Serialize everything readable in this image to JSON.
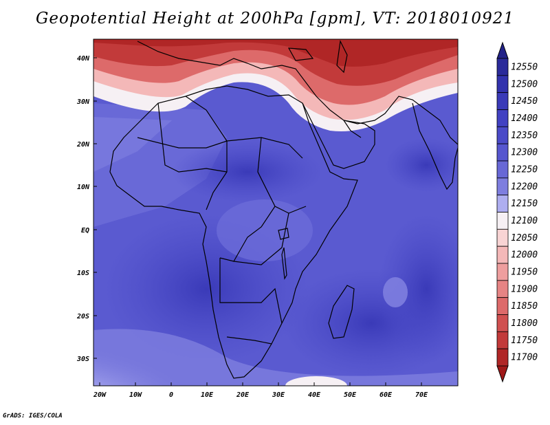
{
  "title": "Geopotential Height at 200hPa [gpm], VT: 2018010921",
  "credit": "GrADS: IGES/COLA",
  "map": {
    "variable": "Geopotential Height",
    "level": "200hPa",
    "units": "gpm",
    "valid_time": "2018010921",
    "region": "Africa and Middle East",
    "lat_labels": [
      "40N",
      "30N",
      "20N",
      "10N",
      "EQ",
      "10S",
      "20S",
      "30S"
    ],
    "lon_labels": [
      "20W",
      "10W",
      "0",
      "10E",
      "20E",
      "30E",
      "40E",
      "50E",
      "60E",
      "70E"
    ]
  },
  "colorbar": {
    "levels": [
      "12550",
      "12500",
      "12450",
      "12400",
      "12350",
      "12300",
      "12250",
      "12200",
      "12150",
      "12100",
      "12050",
      "12000",
      "11950",
      "11900",
      "11850",
      "11800",
      "11750",
      "11700"
    ],
    "colors": [
      "#2b2b9a",
      "#3232ad",
      "#3a3ab8",
      "#4141c2",
      "#4a4ac8",
      "#5656cf",
      "#6868d6",
      "#7e7edf",
      "#aeaef0",
      "#f6f0f4",
      "#f8d4d4",
      "#f4b8b8",
      "#ee9e9e",
      "#e68484",
      "#dd6a6a",
      "#d05050",
      "#c23a3a",
      "#b02626"
    ],
    "top_arrow_color": "#222288",
    "bottom_arrow_color": "#a01818"
  }
}
